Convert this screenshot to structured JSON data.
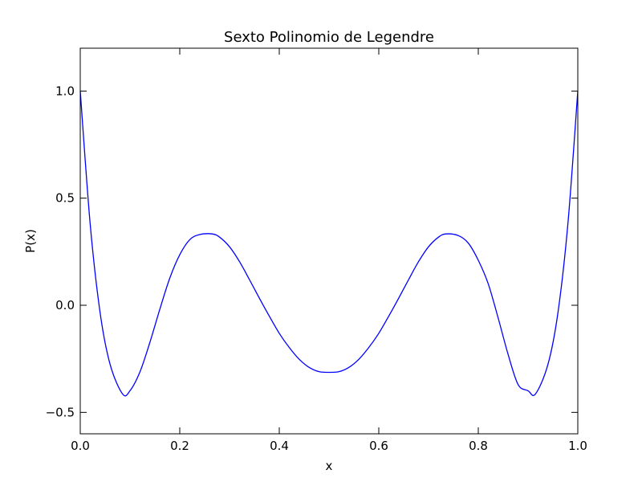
{
  "chart_data": {
    "type": "line",
    "title": "Sexto Polinomio de Legendre",
    "xlabel": "x",
    "ylabel": "P(x)",
    "xlim": [
      0.0,
      1.0
    ],
    "ylim": [
      -0.6,
      1.2
    ],
    "x_ticks": [
      0.0,
      0.2,
      0.4,
      0.6,
      0.8,
      1.0
    ],
    "x_tick_labels": [
      "0.0",
      "0.2",
      "0.4",
      "0.6",
      "0.8",
      "1.0"
    ],
    "y_ticks": [
      -0.5,
      0.0,
      0.5,
      1.0
    ],
    "y_tick_labels": [
      "−0.5",
      "0.0",
      "0.5",
      "1.0"
    ],
    "grid": false,
    "legend": "none",
    "line_color": "#0000ff",
    "series": [
      {
        "x": [
          0.0,
          0.02,
          0.04,
          0.06,
          0.085,
          0.1,
          0.12,
          0.14,
          0.16,
          0.18,
          0.2,
          0.22,
          0.24,
          0.265,
          0.28,
          0.3,
          0.32,
          0.34,
          0.36,
          0.38,
          0.4,
          0.42,
          0.44,
          0.46,
          0.48,
          0.5,
          0.52,
          0.54,
          0.56,
          0.58,
          0.6,
          0.62,
          0.64,
          0.66,
          0.68,
          0.7,
          0.72,
          0.735,
          0.76,
          0.78,
          0.8,
          0.82,
          0.84,
          0.86,
          0.88,
          0.9,
          0.915,
          0.94,
          0.96,
          0.98,
          1.0
        ],
        "y": [
          1.0,
          0.378,
          -0.036,
          -0.276,
          -0.414,
          -0.399,
          -0.311,
          -0.173,
          -0.018,
          0.127,
          0.236,
          0.306,
          0.33,
          0.333,
          0.318,
          0.273,
          0.204,
          0.12,
          0.033,
          -0.051,
          -0.131,
          -0.197,
          -0.252,
          -0.29,
          -0.31,
          -0.313,
          -0.31,
          -0.29,
          -0.252,
          -0.197,
          -0.131,
          -0.051,
          0.033,
          0.12,
          0.204,
          0.273,
          0.318,
          0.333,
          0.325,
          0.29,
          0.21,
          0.1,
          -0.06,
          -0.23,
          -0.37,
          -0.399,
          -0.414,
          -0.276,
          -0.036,
          0.378,
          1.0
        ]
      }
    ]
  }
}
